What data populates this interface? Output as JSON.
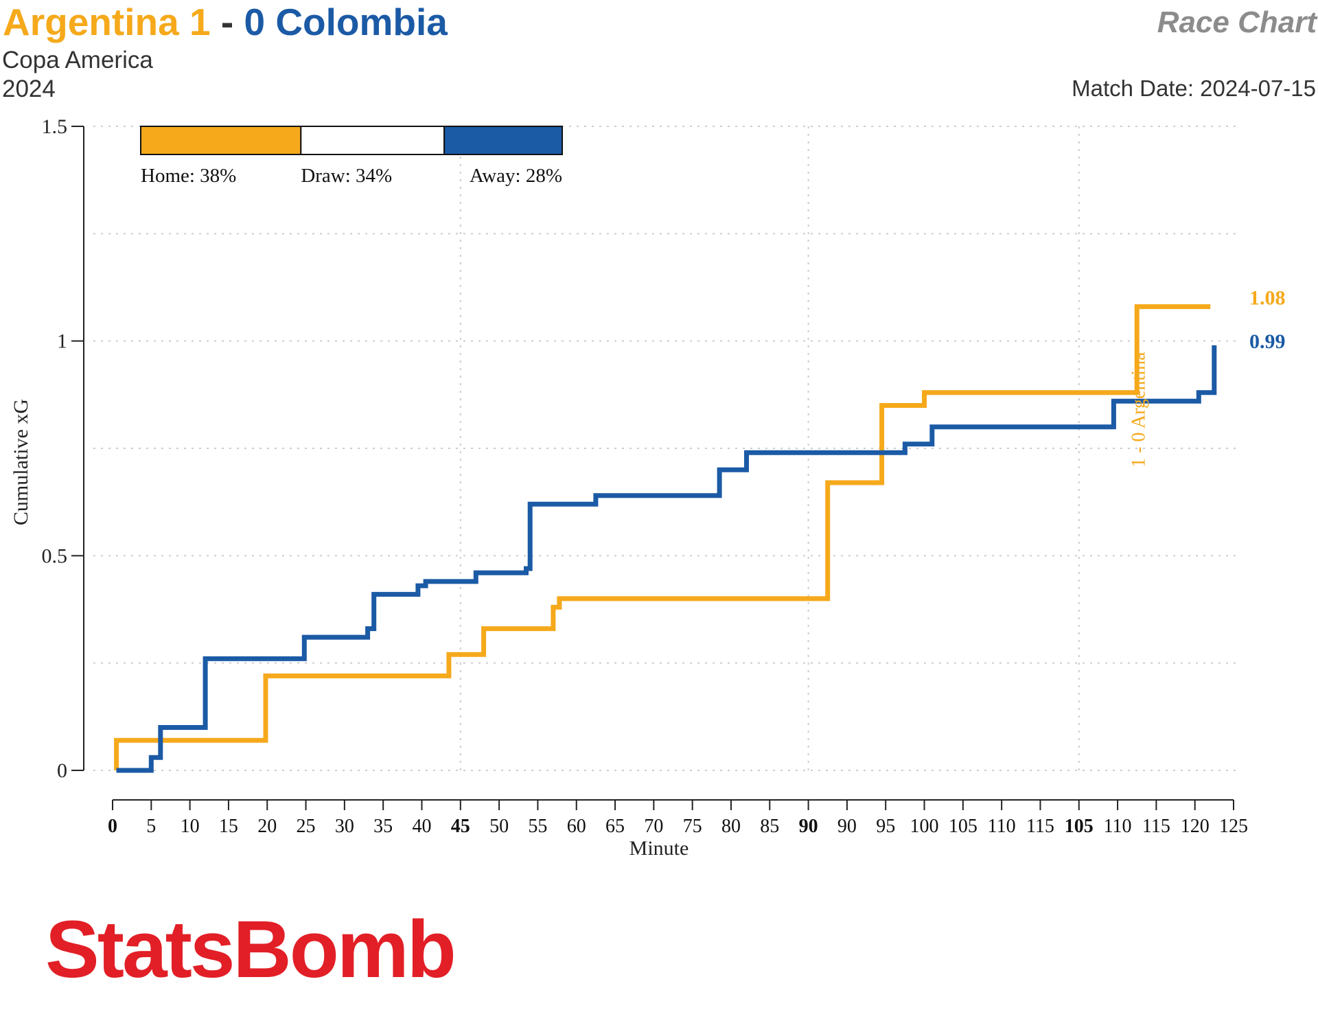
{
  "header": {
    "home_team": "Argentina 1",
    "separator": "-",
    "away_team": "0 Colombia",
    "competition": "Copa America",
    "season": "2024",
    "chart_kind": "Race Chart",
    "match_date": "Match Date: 2024-07-15"
  },
  "colors": {
    "home": "#F5A91B",
    "away": "#1B5AA5",
    "brand": "#E21F26",
    "grid": "#cccccc"
  },
  "brand": {
    "logo_text": "StatsBomb"
  },
  "chart_data": {
    "type": "line",
    "step": true,
    "xlabel": "Minute",
    "ylabel": "Cumulative xG",
    "xlim": [
      0,
      145
    ],
    "ylim": [
      0,
      1.5
    ],
    "x_tick_labels": [
      "0",
      "5",
      "10",
      "15",
      "20",
      "25",
      "30",
      "35",
      "40",
      "45",
      "50",
      "55",
      "60",
      "65",
      "70",
      "75",
      "80",
      "85",
      "90",
      "90",
      "95",
      "100",
      "105",
      "110",
      "115",
      "105",
      "110",
      "115",
      "120",
      "125"
    ],
    "x_tick_bold": [
      "0",
      "45",
      "90",
      "105"
    ],
    "y_ticks": [
      0,
      0.5,
      1,
      1.5
    ],
    "y_tick_labels": [
      "0",
      "0.5",
      "1",
      "1.5"
    ],
    "grid": true,
    "legend": {
      "position": "top-left",
      "items": [
        {
          "label": "Home: 38%",
          "value": 0.38,
          "color": "#F5A91B"
        },
        {
          "label": "Draw: 34%",
          "value": 0.34,
          "color": "#FFFFFF"
        },
        {
          "label": "Away: 28%",
          "value": 0.28,
          "color": "#1B5AA5"
        }
      ]
    },
    "series": [
      {
        "team": "home",
        "final_label": "1.08",
        "points": [
          [
            0.5,
            0
          ],
          [
            0.5,
            0.07
          ],
          [
            19.8,
            0.07
          ],
          [
            19.8,
            0.22
          ],
          [
            43.5,
            0.22
          ],
          [
            43.5,
            0.27
          ],
          [
            48,
            0.27
          ],
          [
            48,
            0.33
          ],
          [
            57,
            0.33
          ],
          [
            57,
            0.38
          ],
          [
            57.8,
            0.38
          ],
          [
            57.8,
            0.4
          ],
          [
            92.5,
            0.4
          ],
          [
            92.5,
            0.67
          ],
          [
            99.5,
            0.67
          ],
          [
            99.5,
            0.85
          ],
          [
            105,
            0.85
          ],
          [
            105,
            0.88
          ],
          [
            132.5,
            0.88
          ],
          [
            132.5,
            1.08
          ],
          [
            142,
            1.08
          ]
        ]
      },
      {
        "team": "away",
        "final_label": "0.99",
        "points": [
          [
            0.5,
            0
          ],
          [
            5,
            0
          ],
          [
            5,
            0.03
          ],
          [
            6.2,
            0.03
          ],
          [
            6.2,
            0.1
          ],
          [
            12,
            0.1
          ],
          [
            12,
            0.26
          ],
          [
            24.8,
            0.26
          ],
          [
            24.8,
            0.31
          ],
          [
            33,
            0.31
          ],
          [
            33,
            0.33
          ],
          [
            33.8,
            0.33
          ],
          [
            33.8,
            0.41
          ],
          [
            39.5,
            0.41
          ],
          [
            39.5,
            0.43
          ],
          [
            40.5,
            0.43
          ],
          [
            40.5,
            0.44
          ],
          [
            47,
            0.44
          ],
          [
            47,
            0.46
          ],
          [
            53.5,
            0.46
          ],
          [
            53.5,
            0.47
          ],
          [
            54,
            0.47
          ],
          [
            54,
            0.62
          ],
          [
            62.5,
            0.62
          ],
          [
            62.5,
            0.64
          ],
          [
            78.5,
            0.64
          ],
          [
            78.5,
            0.7
          ],
          [
            82,
            0.7
          ],
          [
            82,
            0.74
          ],
          [
            102.5,
            0.74
          ],
          [
            102.5,
            0.76
          ],
          [
            106,
            0.76
          ],
          [
            106,
            0.8
          ],
          [
            129.5,
            0.8
          ],
          [
            129.5,
            0.86
          ],
          [
            140.5,
            0.86
          ],
          [
            140.5,
            0.88
          ],
          [
            142.5,
            0.88
          ],
          [
            142.5,
            0.99
          ]
        ]
      }
    ],
    "annotations": [
      {
        "text": "1 - 0 Argentina",
        "x": 133.5,
        "y": 0.84,
        "team": "home",
        "orientation": "vertical"
      }
    ]
  }
}
